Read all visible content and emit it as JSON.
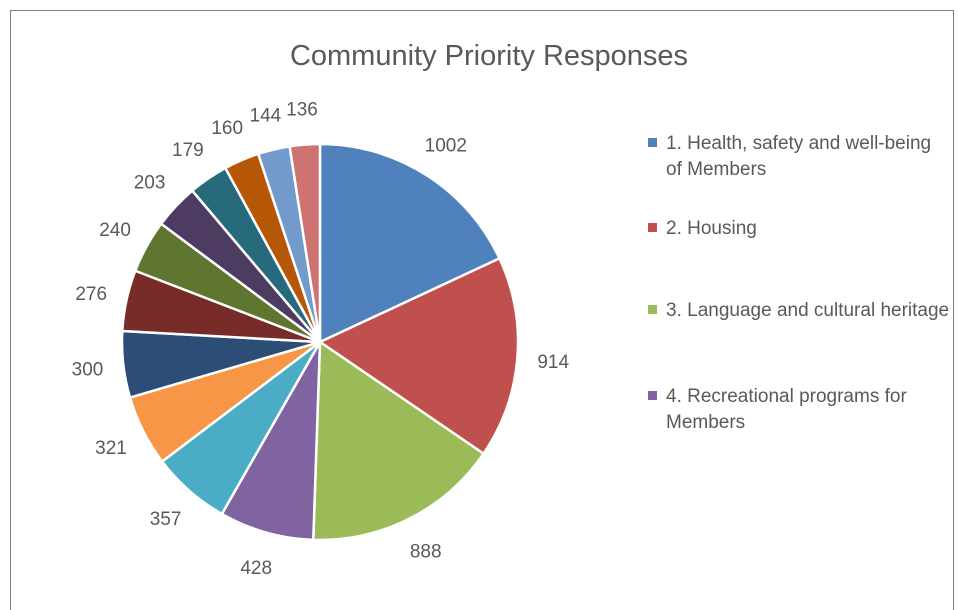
{
  "chart_data": {
    "type": "pie",
    "title": "Community Priority Responses",
    "values": [
      1002,
      914,
      888,
      428,
      357,
      321,
      300,
      276,
      240,
      203,
      179,
      160,
      144,
      136
    ],
    "data_labels": [
      "1002",
      "914",
      "888",
      "428",
      "357",
      "321",
      "300",
      "276",
      "240",
      "203",
      "179",
      "160",
      "144",
      "136"
    ],
    "colors": [
      "#4f81bd",
      "#c0504d",
      "#9bbb59",
      "#8064a2",
      "#4bacc6",
      "#f79646",
      "#2c4d75",
      "#772c2a",
      "#5f7530",
      "#4d3b62",
      "#276a7c",
      "#b65708",
      "#729aca",
      "#cd7371"
    ],
    "legend": [
      {
        "label": "1. Health, safety and well-being of Members",
        "color": "#4f81bd"
      },
      {
        "label": "2. Housing",
        "color": "#c0504d"
      },
      {
        "label": "3. Language and cultural heritage",
        "color": "#9bbb59"
      },
      {
        "label": "4. Recreational programs for Members",
        "color": "#8064a2"
      }
    ],
    "legend_position": "right"
  }
}
